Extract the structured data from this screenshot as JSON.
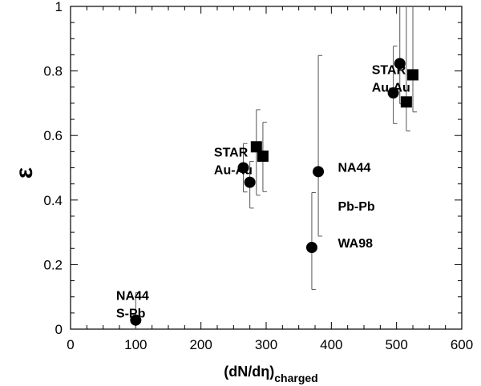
{
  "chart_data": {
    "type": "scatter",
    "title": "",
    "xlabel": "(dN/dη)",
    "xlabel_subscript": "charged",
    "ylabel": "ε",
    "xlim": [
      0,
      600
    ],
    "ylim": [
      0,
      1
    ],
    "x_ticks": [
      0,
      100,
      200,
      300,
      400,
      500,
      600
    ],
    "x_tick_labels": [
      "0",
      "100",
      "200",
      "300",
      "400",
      "500",
      "600"
    ],
    "y_ticks": [
      0,
      0.2,
      0.4,
      0.6,
      0.8,
      1
    ],
    "y_tick_labels": [
      "0",
      "0.2",
      "0.4",
      "0.6",
      "0.8",
      "1"
    ],
    "grid": false,
    "legend": "none",
    "series": [
      {
        "marker": "circle",
        "points": [
          {
            "x": 100,
            "y": 0.028,
            "err_low": 0.028,
            "err_high": 0.085
          },
          {
            "x": 265,
            "y": 0.5,
            "err_low": 0.075,
            "err_high": 0.075
          },
          {
            "x": 275,
            "y": 0.455,
            "err_low": 0.08,
            "err_high": 0.065
          },
          {
            "x": 370,
            "y": 0.253,
            "err_low": 0.13,
            "err_high": 0.17
          },
          {
            "x": 380,
            "y": 0.488,
            "err_low": 0.2,
            "err_high": 0.36
          },
          {
            "x": 495,
            "y": 0.732,
            "err_low": 0.095,
            "err_high": 0.145
          },
          {
            "x": 505,
            "y": 0.823,
            "err_low": 0.125,
            "err_high": 0.177
          }
        ]
      },
      {
        "marker": "square",
        "points": [
          {
            "x": 285,
            "y": 0.565,
            "err_low": 0.15,
            "err_high": 0.115
          },
          {
            "x": 295,
            "y": 0.536,
            "err_low": 0.11,
            "err_high": 0.105
          },
          {
            "x": 515,
            "y": 0.704,
            "err_low": 0.09,
            "err_high": 0.296
          },
          {
            "x": 525,
            "y": 0.788,
            "err_low": 0.115,
            "err_high": 0.212
          }
        ]
      }
    ],
    "annotations": [
      {
        "lines": [
          "NA44",
          "S-Pb"
        ],
        "x": 70,
        "y": 0.09
      },
      {
        "lines": [
          "STAR",
          "Au-Au"
        ],
        "x": 220,
        "y": 0.535
      },
      {
        "lines": [
          "NA44"
        ],
        "x": 410,
        "y": 0.488
      },
      {
        "lines": [
          "Pb-Pb"
        ],
        "x": 410,
        "y": 0.367
      },
      {
        "lines": [
          "WA98"
        ],
        "x": 410,
        "y": 0.253
      },
      {
        "lines": [
          "STAR",
          "Au-Au"
        ],
        "x": 462,
        "y": 0.79
      }
    ]
  }
}
